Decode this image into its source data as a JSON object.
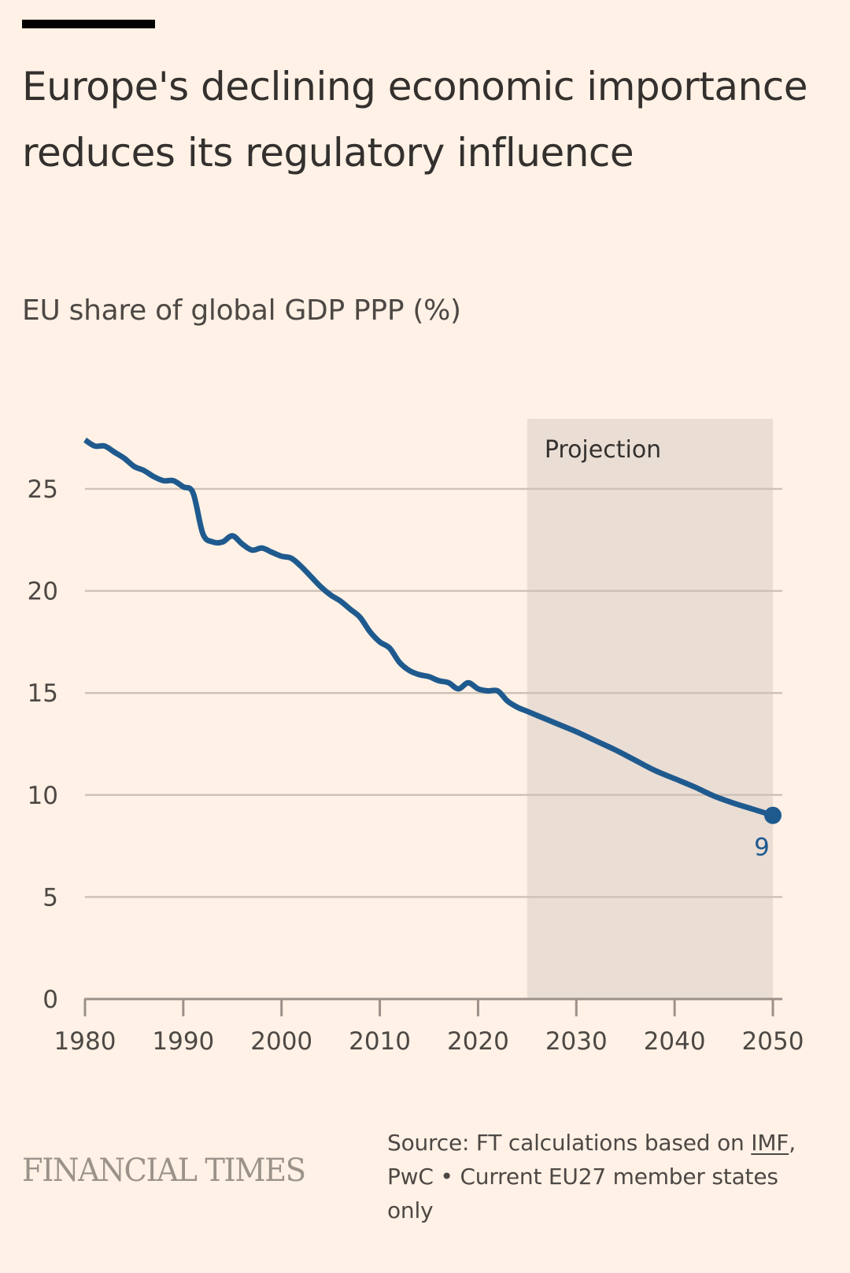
{
  "header": {
    "title": "Europe's declining economic importance reduces its regulatory influence",
    "subtitle": "EU share of global GDP PPP (%)"
  },
  "footer": {
    "logo": "FINANCIAL TIMES",
    "source_prefix": "Source: FT calculations based on",
    "source_link": "IMF",
    "source_suffix": ", PwC • Current EU27 member states only"
  },
  "colors": {
    "background": "#fff1e5",
    "line": "#1f5a8f",
    "projection_shade": "#e9ddd4",
    "gridline": "#cfc3b8",
    "axis": "#9c918a",
    "text": "#4d4845"
  },
  "chart_data": {
    "type": "line",
    "title": "Europe's declining economic importance reduces its regulatory influence",
    "subtitle": "EU share of global GDP PPP (%)",
    "xlabel": "",
    "ylabel": "EU share of global GDP PPP (%)",
    "xlim": [
      1980,
      2050
    ],
    "ylim": [
      0,
      27
    ],
    "x_ticks": [
      1980,
      1990,
      2000,
      2010,
      2020,
      2030,
      2040,
      2050
    ],
    "y_ticks": [
      0,
      5,
      10,
      15,
      20,
      25
    ],
    "grid": true,
    "legend": "none",
    "annotations": [
      {
        "type": "shaded_region",
        "label": "Projection",
        "x_start": 2025,
        "x_end": 2050
      },
      {
        "type": "end_label",
        "x": 2050,
        "y": 9,
        "text": "9"
      }
    ],
    "series": [
      {
        "name": "EU share of global GDP PPP (%)",
        "x": [
          1980,
          1981,
          1982,
          1983,
          1984,
          1985,
          1986,
          1987,
          1988,
          1989,
          1990,
          1991,
          1992,
          1993,
          1994,
          1995,
          1996,
          1997,
          1998,
          1999,
          2000,
          2001,
          2002,
          2003,
          2004,
          2005,
          2006,
          2007,
          2008,
          2009,
          2010,
          2011,
          2012,
          2013,
          2014,
          2015,
          2016,
          2017,
          2018,
          2019,
          2020,
          2021,
          2022,
          2023,
          2024,
          2025,
          2026,
          2027,
          2028,
          2029,
          2030,
          2032,
          2034,
          2036,
          2038,
          2040,
          2042,
          2044,
          2046,
          2048,
          2050
        ],
        "values": [
          27.4,
          27.1,
          27.1,
          26.8,
          26.5,
          26.1,
          25.9,
          25.6,
          25.4,
          25.4,
          25.1,
          24.8,
          22.8,
          22.4,
          22.4,
          22.7,
          22.3,
          22.0,
          22.1,
          21.9,
          21.7,
          21.6,
          21.2,
          20.7,
          20.2,
          19.8,
          19.5,
          19.1,
          18.7,
          18.0,
          17.5,
          17.2,
          16.5,
          16.1,
          15.9,
          15.8,
          15.6,
          15.5,
          15.2,
          15.5,
          15.2,
          15.1,
          15.1,
          14.6,
          14.3,
          14.1,
          13.9,
          13.7,
          13.5,
          13.3,
          13.1,
          12.65,
          12.2,
          11.7,
          11.2,
          10.8,
          10.4,
          9.95,
          9.6,
          9.3,
          9.0
        ]
      }
    ]
  }
}
